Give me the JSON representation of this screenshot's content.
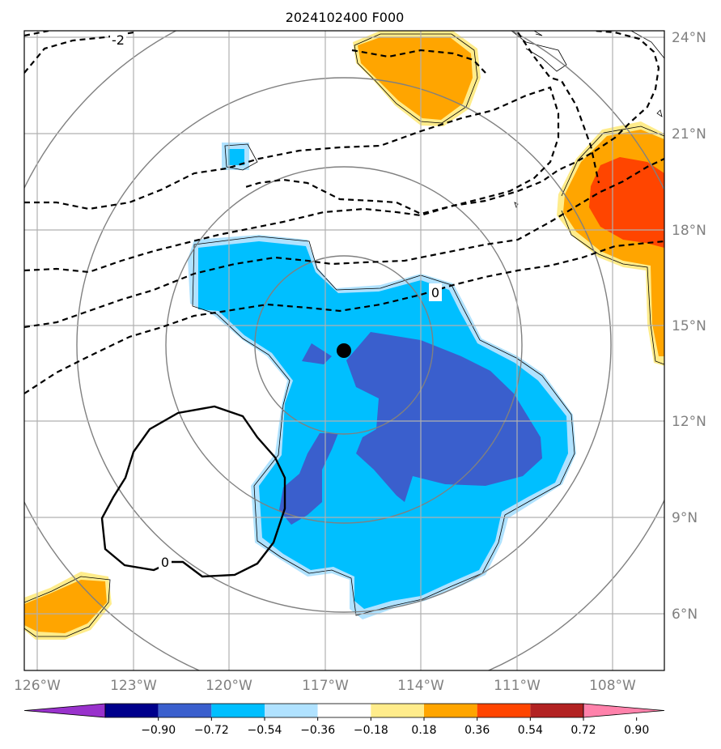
{
  "title": "2024102400 F000",
  "lat_labels": [
    "24°N",
    "21°N",
    "18°N",
    "15°N",
    "12°N",
    "9°N",
    "6°N"
  ],
  "lon_labels": [
    "126°W",
    "123°W",
    "120°W",
    "117°W",
    "114°W",
    "111°W",
    "108°W"
  ],
  "contour_labels": {
    "neg2": "-2",
    "zero_dashed": "0",
    "zero_solid": "0"
  },
  "colorbar": {
    "tick_labels": [
      "−0.90",
      "−0.72",
      "−0.54",
      "−0.36",
      "−0.18",
      "0.18",
      "0.36",
      "0.54",
      "0.72",
      "0.90"
    ],
    "colors": [
      "#9932cc",
      "#00008b",
      "#3a5fcd",
      "#00bfff",
      "#b0e2ff",
      "#ffffff",
      "#ffec8b",
      "#ffa500",
      "#ff4500",
      "#b22222",
      "#ff82ab"
    ]
  },
  "field_colors": {
    "light_blue": "#b0e2ff",
    "blue": "#00bfff",
    "dark_blue": "#3a5fcd",
    "light_yellow": "#ffec8b",
    "orange": "#ffa500",
    "red_orange": "#ff4500"
  },
  "storm_center": {
    "lat": 14.2,
    "lon": "116.5°W"
  }
}
